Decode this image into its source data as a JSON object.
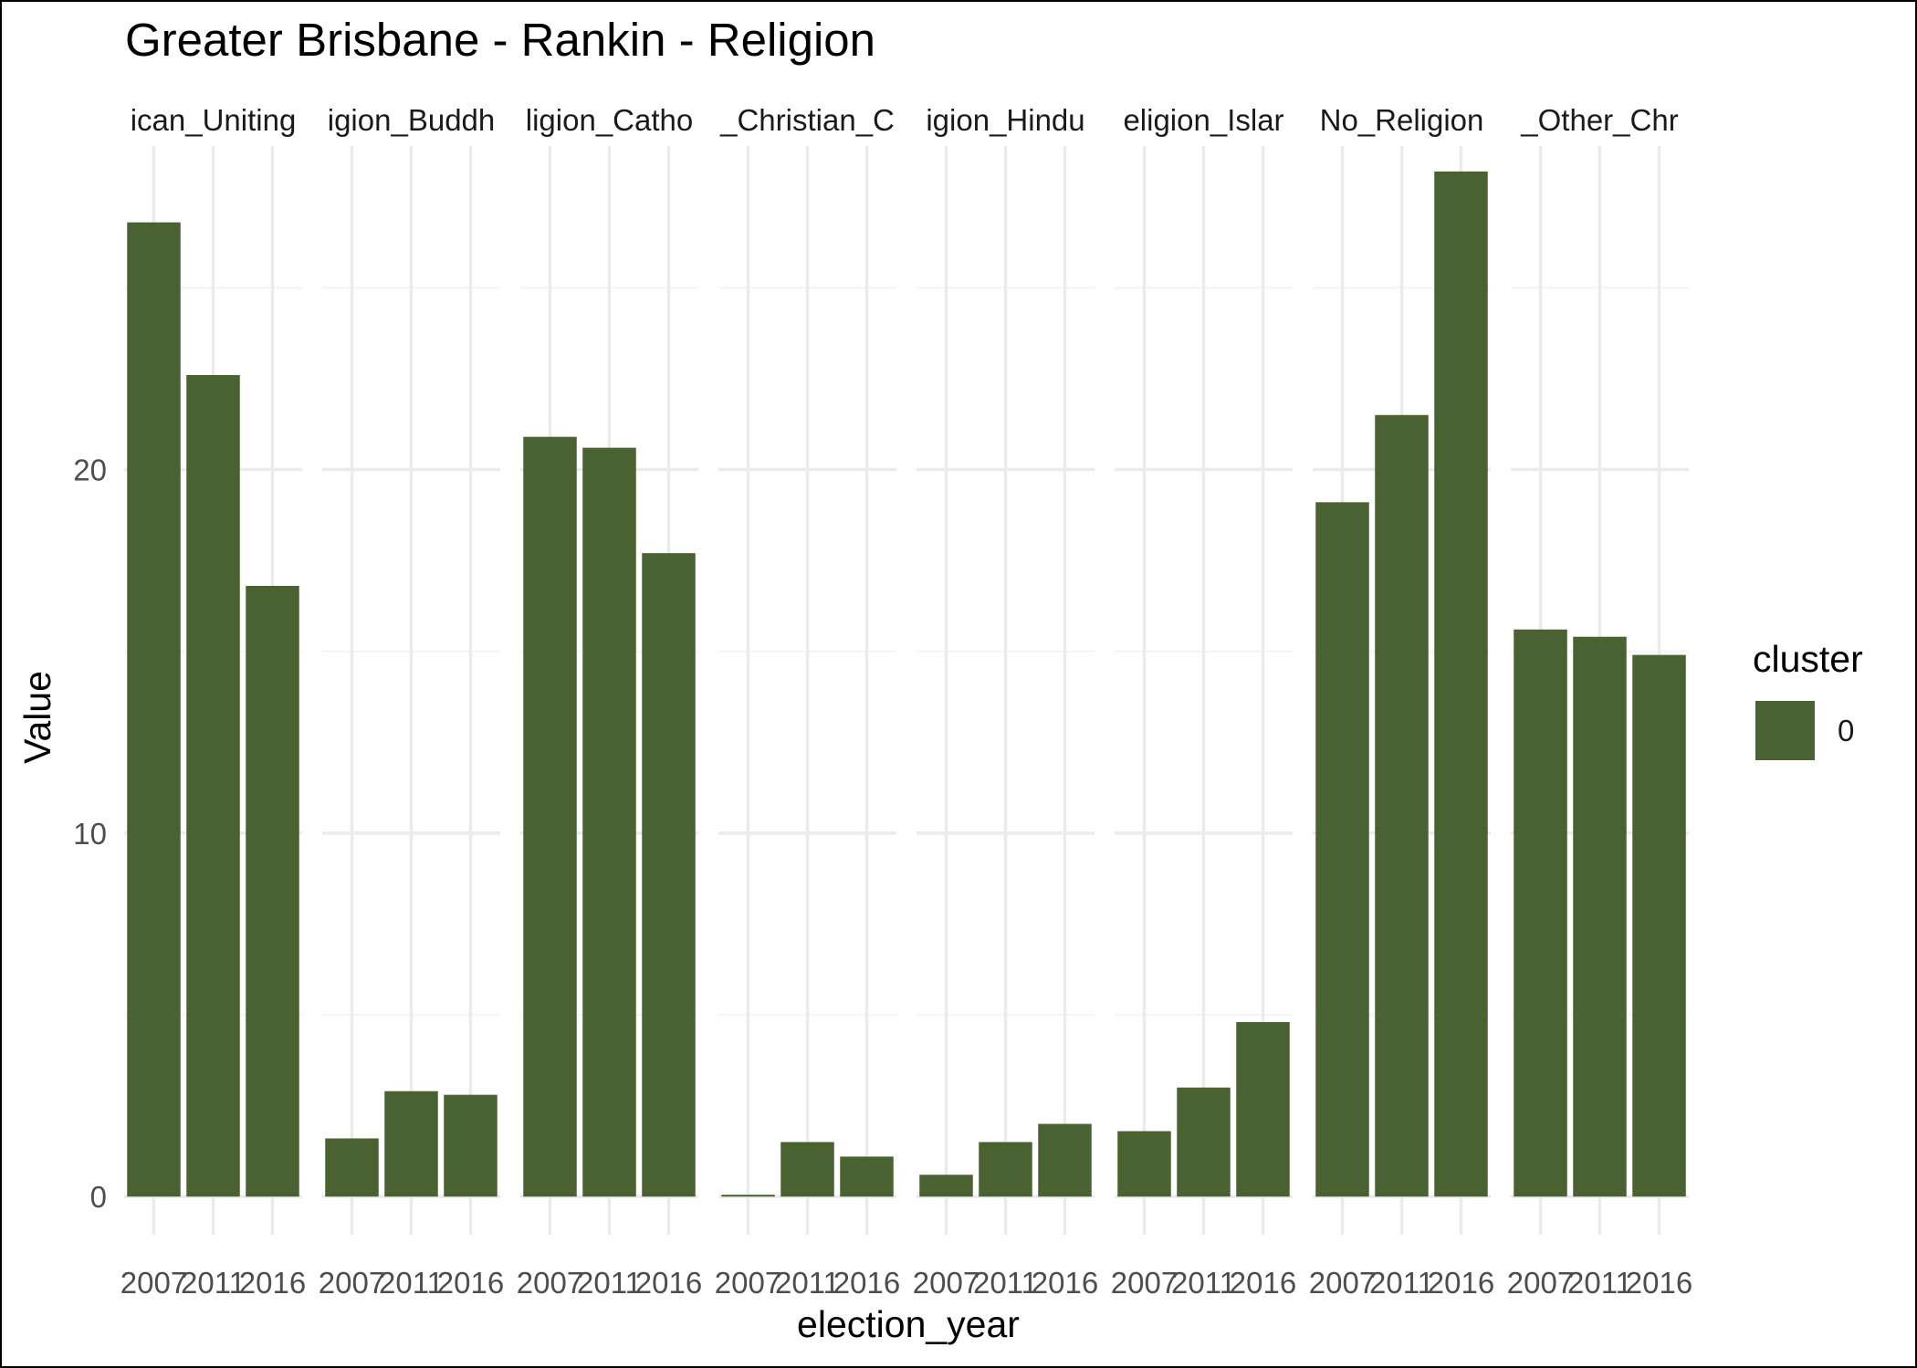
{
  "chart_data": {
    "type": "bar",
    "title": "Greater Brisbane - Rankin - Religion",
    "xlabel": "election_year",
    "ylabel": "Value",
    "ylim": [
      -1.05,
      28.9
    ],
    "y_ticks": [
      0,
      10,
      20
    ],
    "grid": true,
    "legend": {
      "title": "cluster",
      "position": "right",
      "entries": [
        {
          "label": "0",
          "color": "#4A6132"
        }
      ]
    },
    "categories": [
      "2007",
      "2011",
      "2016"
    ],
    "category_labels_visible": [
      "2007",
      "2011",
      "2016"
    ],
    "panels": [
      {
        "strip_label": "ican_Uniting",
        "values": [
          26.8,
          22.6,
          16.8
        ]
      },
      {
        "strip_label": "igion_Buddh",
        "values": [
          1.6,
          2.9,
          2.8
        ]
      },
      {
        "strip_label": "ligion_Catho",
        "values": [
          20.9,
          20.6,
          17.7
        ]
      },
      {
        "strip_label": "_Christian_C",
        "values": [
          0.05,
          1.5,
          1.1
        ]
      },
      {
        "strip_label": "igion_Hindu",
        "values": [
          0.6,
          1.5,
          2.0
        ]
      },
      {
        "strip_label": "eligion_Islar",
        "values": [
          1.8,
          3.0,
          4.8
        ]
      },
      {
        "strip_label": "No_Religion",
        "values": [
          19.1,
          21.5,
          28.2
        ]
      },
      {
        "strip_label": "_Other_Chr",
        "values": [
          15.6,
          15.4,
          14.9
        ]
      }
    ]
  },
  "colors": {
    "bar": "#4A6132",
    "grid_major": "#EBEBEB",
    "grid_minor": "#F4F4F4"
  }
}
